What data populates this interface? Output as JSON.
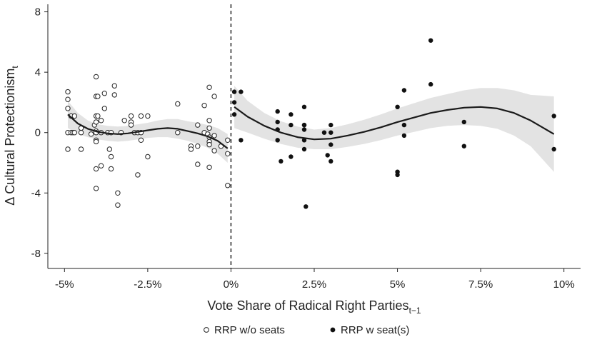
{
  "chart_data": {
    "type": "scatter",
    "xlabel": "Vote Share of Radical Right Parties",
    "xlabel_sub": "t−1",
    "ylabel": "Δ Cultural Protectionism",
    "ylabel_sub": "t",
    "xlim": [
      -5.5,
      10.5
    ],
    "ylim": [
      -9,
      8.5
    ],
    "x_ticks": [
      {
        "value": -5,
        "label": "-5%"
      },
      {
        "value": -2.5,
        "label": "-2.5%"
      },
      {
        "value": 0,
        "label": "0%"
      },
      {
        "value": 2.5,
        "label": "2.5%"
      },
      {
        "value": 5,
        "label": "5%"
      },
      {
        "value": 7.5,
        "label": "7.5%"
      },
      {
        "value": 10,
        "label": "10%"
      }
    ],
    "y_ticks": [
      {
        "value": 8,
        "label": "8"
      },
      {
        "value": 4,
        "label": "4"
      },
      {
        "value": 0,
        "label": "0"
      },
      {
        "value": -4,
        "label": "-4"
      },
      {
        "value": -8,
        "label": "-8"
      }
    ],
    "cutoff_x": 0,
    "grid": false,
    "legend_position": "bottom",
    "series": [
      {
        "name": "RRP w/o seats",
        "marker": "open-circle",
        "color": "#222222",
        "points": [
          [
            -4.9,
            2.7
          ],
          [
            -4.9,
            2.2
          ],
          [
            -4.9,
            1.6
          ],
          [
            -4.9,
            0
          ],
          [
            -4.9,
            -1.1
          ],
          [
            -4.8,
            1.1
          ],
          [
            -4.8,
            0
          ],
          [
            -4.75,
            0
          ],
          [
            -4.7,
            1.1
          ],
          [
            -4.7,
            0
          ],
          [
            -4.5,
            0.3
          ],
          [
            -4.5,
            0
          ],
          [
            -4.5,
            -1.1
          ],
          [
            -4.2,
            -0.1
          ],
          [
            -4.1,
            0.5
          ],
          [
            -4.05,
            3.7
          ],
          [
            -4.05,
            2.4
          ],
          [
            -4.05,
            1.1
          ],
          [
            -4.05,
            0.7
          ],
          [
            -4.05,
            0.1
          ],
          [
            -4.05,
            0
          ],
          [
            -4.05,
            -0.5
          ],
          [
            -4.05,
            -0.6
          ],
          [
            -4.05,
            -2.4
          ],
          [
            -4.05,
            -3.7
          ],
          [
            -4.0,
            2.4
          ],
          [
            -4.0,
            1.1
          ],
          [
            -3.9,
            -2.2
          ],
          [
            -3.9,
            0.8
          ],
          [
            -3.9,
            0
          ],
          [
            -3.8,
            2.6
          ],
          [
            -3.8,
            1.6
          ],
          [
            -3.7,
            0
          ],
          [
            -3.65,
            -1.1
          ],
          [
            -3.6,
            -1.6
          ],
          [
            -3.6,
            -2.4
          ],
          [
            -3.6,
            0
          ],
          [
            -3.5,
            3.1
          ],
          [
            -3.5,
            2.5
          ],
          [
            -3.4,
            -4.0
          ],
          [
            -3.4,
            -4.8
          ],
          [
            -3.3,
            0
          ],
          [
            -3.2,
            0.8
          ],
          [
            -3.0,
            1.1
          ],
          [
            -3.0,
            0.7
          ],
          [
            -3.0,
            0.5
          ],
          [
            -2.9,
            0
          ],
          [
            -2.8,
            0
          ],
          [
            -2.8,
            -2.8
          ],
          [
            -2.7,
            1.1
          ],
          [
            -2.7,
            0
          ],
          [
            -2.7,
            -0.5
          ],
          [
            -2.5,
            1.1
          ],
          [
            -2.5,
            -1.6
          ],
          [
            -1.6,
            1.9
          ],
          [
            -1.6,
            0
          ],
          [
            -1.2,
            -0.9
          ],
          [
            -1.2,
            -1.1
          ],
          [
            -1.0,
            0.5
          ],
          [
            -1.0,
            -0.9
          ],
          [
            -1.0,
            -2.1
          ],
          [
            -0.8,
            1.8
          ],
          [
            -0.8,
            0
          ],
          [
            -0.7,
            -0.1
          ],
          [
            -0.65,
            3.0
          ],
          [
            -0.65,
            0.8
          ],
          [
            -0.65,
            0.3
          ],
          [
            -0.65,
            -0.3
          ],
          [
            -0.65,
            -0.6
          ],
          [
            -0.65,
            -0.8
          ],
          [
            -0.65,
            -2.3
          ],
          [
            -0.5,
            2.4
          ],
          [
            -0.5,
            -0.2
          ],
          [
            -0.5,
            -1.2
          ],
          [
            -0.3,
            -0.9
          ],
          [
            -0.1,
            -0.5
          ],
          [
            -0.1,
            -1.4
          ],
          [
            -0.1,
            -3.5
          ]
        ]
      },
      {
        "name": "RRP w seat(s)",
        "marker": "filled-circle",
        "color": "#111111",
        "points": [
          [
            0.1,
            2.7
          ],
          [
            0.1,
            2.0
          ],
          [
            0.1,
            1.2
          ],
          [
            0.3,
            2.7
          ],
          [
            0.3,
            -0.5
          ],
          [
            1.4,
            1.4
          ],
          [
            1.4,
            0.7
          ],
          [
            1.4,
            0.2
          ],
          [
            1.4,
            -0.5
          ],
          [
            1.5,
            -1.9
          ],
          [
            1.8,
            1.2
          ],
          [
            1.8,
            0.5
          ],
          [
            1.8,
            -1.6
          ],
          [
            2.2,
            1.7
          ],
          [
            2.2,
            0.5
          ],
          [
            2.2,
            0.5
          ],
          [
            2.2,
            0.2
          ],
          [
            2.2,
            -0.5
          ],
          [
            2.2,
            -1.1
          ],
          [
            2.25,
            -4.9
          ],
          [
            2.8,
            0
          ],
          [
            2.9,
            -1.5
          ],
          [
            3.0,
            0
          ],
          [
            3.0,
            0.5
          ],
          [
            3.0,
            -0.8
          ],
          [
            3.0,
            -1.9
          ],
          [
            5.0,
            1.7
          ],
          [
            5.0,
            -2.6
          ],
          [
            5.0,
            -2.8
          ],
          [
            5.2,
            2.8
          ],
          [
            5.2,
            0.5
          ],
          [
            5.2,
            -0.2
          ],
          [
            6.0,
            6.1
          ],
          [
            6.0,
            3.2
          ],
          [
            7.0,
            0.7
          ],
          [
            7.0,
            -0.9
          ],
          [
            9.7,
            1.1
          ],
          [
            9.7,
            -1.1
          ]
        ]
      }
    ],
    "fit_left": {
      "x": [
        -4.9,
        -4.6,
        -4.3,
        -4.0,
        -3.7,
        -3.4,
        -3.1,
        -2.8,
        -2.5,
        -2.2,
        -1.9,
        -1.6,
        -1.3,
        -1.0,
        -0.7,
        -0.4,
        -0.1
      ],
      "y": [
        1.2,
        0.6,
        0.25,
        0.05,
        -0.05,
        -0.1,
        -0.05,
        0.05,
        0.15,
        0.25,
        0.3,
        0.25,
        0.1,
        -0.05,
        -0.25,
        -0.55,
        -1.05
      ],
      "lo": [
        0.3,
        -0.1,
        -0.3,
        -0.45,
        -0.55,
        -0.6,
        -0.55,
        -0.45,
        -0.35,
        -0.3,
        -0.3,
        -0.4,
        -0.55,
        -0.75,
        -1.0,
        -1.4,
        -2.0
      ],
      "hi": [
        2.1,
        1.3,
        0.8,
        0.55,
        0.45,
        0.4,
        0.45,
        0.55,
        0.65,
        0.8,
        0.9,
        0.9,
        0.75,
        0.65,
        0.5,
        0.3,
        -0.1
      ]
    },
    "fit_right": {
      "x": [
        0.1,
        0.5,
        1.0,
        1.5,
        2.0,
        2.5,
        3.0,
        3.5,
        4.0,
        4.5,
        5.0,
        5.5,
        6.0,
        6.5,
        7.0,
        7.5,
        8.0,
        8.5,
        9.0,
        9.7
      ],
      "y": [
        1.7,
        1.05,
        0.45,
        0.0,
        -0.3,
        -0.45,
        -0.4,
        -0.2,
        0.05,
        0.35,
        0.7,
        1.0,
        1.3,
        1.5,
        1.65,
        1.7,
        1.6,
        1.3,
        0.8,
        -0.1
      ],
      "lo": [
        0.3,
        0.0,
        -0.4,
        -0.75,
        -1.0,
        -1.1,
        -1.1,
        -0.95,
        -0.75,
        -0.5,
        -0.2,
        0.05,
        0.3,
        0.45,
        0.5,
        0.45,
        0.25,
        -0.2,
        -0.9,
        -2.6
      ],
      "hi": [
        3.1,
        2.1,
        1.3,
        0.75,
        0.4,
        0.2,
        0.3,
        0.55,
        0.85,
        1.2,
        1.6,
        1.95,
        2.3,
        2.55,
        2.8,
        2.95,
        2.95,
        2.8,
        2.5,
        2.4
      ]
    }
  }
}
